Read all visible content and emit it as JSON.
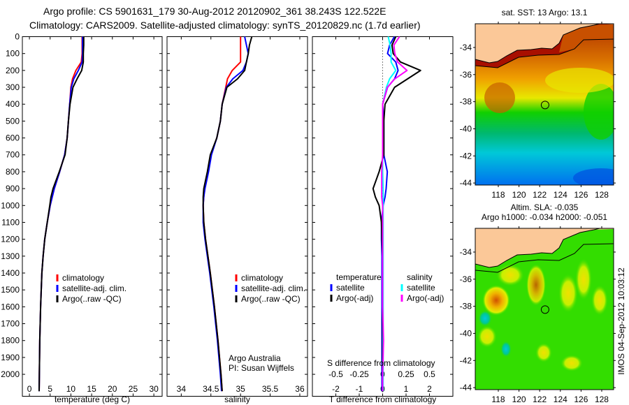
{
  "header": {
    "line1": "Argo profile: CS 5901631_179 30-Aug-2012 20120902_361 38.243S 122.522E",
    "line2": "Climatology: CARS2009. Satellite-adjusted climatology: synTS_20120829.nc (1.7d earlier)"
  },
  "credits": {
    "line1": "Argo Australia",
    "line2": "PI: Susan Wijffels"
  },
  "imos_stamp": "IMOS 04-Sep-2012 10:03:12",
  "chart_data": [
    {
      "type": "line",
      "id": "temperature",
      "xlabel": "temperature (deg C)",
      "ylabel": "depth",
      "xlim": [
        -1.7,
        32
      ],
      "ylim": [
        2130,
        0
      ],
      "xticks": [
        "0",
        "5",
        "10",
        "15",
        "20",
        "25",
        "30"
      ],
      "yticks": [
        "0",
        "100",
        "200",
        "300",
        "400",
        "500",
        "600",
        "700",
        "800",
        "900",
        "1000",
        "1100",
        "1200",
        "1300",
        "1400",
        "1500",
        "1600",
        "1700",
        "1800",
        "1900",
        "2000"
      ],
      "depth": [
        0,
        50,
        100,
        150,
        200,
        250,
        300,
        400,
        500,
        600,
        700,
        800,
        900,
        950,
        1000,
        1100,
        1200,
        1300,
        1400,
        1600,
        1800,
        2000,
        2100
      ],
      "series": [
        {
          "name": "climatology",
          "color": "#ff0000",
          "values": [
            12.7,
            12.7,
            12.7,
            12.5,
            11.2,
            10.4,
            10.0,
            9.7,
            9.4,
            9.1,
            8.5,
            7.3,
            6.0,
            5.5,
            5.0,
            4.3,
            3.7,
            3.3,
            3.0,
            2.7,
            2.5,
            2.4,
            2.35
          ]
        },
        {
          "name": "satellite-adj. clim.",
          "color": "#0000ff",
          "values": [
            12.8,
            12.8,
            12.8,
            12.7,
            11.8,
            10.7,
            10.1,
            9.7,
            9.4,
            9.1,
            8.5,
            7.3,
            6.0,
            5.5,
            5.0,
            4.3,
            3.7,
            3.3,
            3.0,
            2.7,
            2.5,
            2.4,
            2.35
          ]
        },
        {
          "name": "Argo(..raw -QC)",
          "color": "#000000",
          "values": [
            13.1,
            13.1,
            13.0,
            13.0,
            12.6,
            11.5,
            10.5,
            9.8,
            9.4,
            9.1,
            8.6,
            7.2,
            5.7,
            5.2,
            4.9,
            4.3,
            3.7,
            3.3,
            3.0,
            2.7,
            2.5,
            2.4,
            2.35
          ]
        }
      ],
      "legend": "lower-middle"
    },
    {
      "type": "line",
      "id": "salinity",
      "xlabel": "salinity",
      "xlim": [
        33.76,
        36.13
      ],
      "ylim": [
        2130,
        0
      ],
      "xticks": [
        "34",
        "34.5",
        "35",
        "35.5",
        "36"
      ],
      "depth": [
        0,
        50,
        100,
        150,
        200,
        250,
        300,
        400,
        500,
        600,
        700,
        800,
        900,
        950,
        1000,
        1100,
        1200,
        1300,
        1400,
        1600,
        1800,
        2000,
        2100
      ],
      "series": [
        {
          "name": "climatology",
          "color": "#ff0000",
          "values": [
            35.0,
            35.0,
            35.0,
            35.0,
            34.86,
            34.78,
            34.75,
            34.69,
            34.66,
            34.6,
            34.5,
            34.45,
            34.39,
            34.38,
            34.37,
            34.38,
            34.41,
            34.45,
            34.49,
            34.56,
            34.62,
            34.67,
            34.69
          ]
        },
        {
          "name": "satellite-adj. clim.",
          "color": "#0000ff",
          "values": [
            35.07,
            35.1,
            35.13,
            35.1,
            35.04,
            34.87,
            34.76,
            34.69,
            34.66,
            34.6,
            34.51,
            34.46,
            34.4,
            34.38,
            34.37,
            34.37,
            34.4,
            34.44,
            34.48,
            34.55,
            34.61,
            34.66,
            34.68
          ]
        },
        {
          "name": "Argo(..raw -QC)",
          "color": "#000000",
          "values": [
            35.19,
            35.15,
            35.13,
            35.1,
            35.07,
            34.95,
            34.77,
            34.69,
            34.66,
            34.6,
            34.49,
            34.44,
            34.38,
            34.37,
            34.37,
            34.38,
            34.41,
            34.45,
            34.49,
            34.56,
            34.62,
            34.67,
            34.69
          ]
        }
      ],
      "legend": "lower-middle"
    },
    {
      "type": "line",
      "id": "difference",
      "xlabel": "T difference from climatology",
      "x2label": "S difference from climatology",
      "xlim": [
        -3,
        3
      ],
      "x2lim": [
        -0.75,
        0.75
      ],
      "ylim": [
        2130,
        0
      ],
      "xticks": [
        "-2",
        "-1",
        "0",
        "1",
        "2"
      ],
      "x2ticks": [
        "-0.5",
        "-0.25",
        "0",
        "0.25",
        "0.5"
      ],
      "legend_headers": {
        "temperature": "temperature",
        "salinity": "salinity"
      },
      "depth": [
        0,
        50,
        100,
        150,
        200,
        250,
        300,
        400,
        500,
        600,
        700,
        800,
        900,
        950,
        1000,
        1100,
        1200,
        1300,
        1400,
        1600,
        1800,
        2000,
        2100
      ],
      "series": [
        {
          "name": "satellite",
          "group": "temperature",
          "axis": "T",
          "color": "#0000ff",
          "values": [
            0.5,
            0.3,
            0.21,
            0.56,
            0.66,
            0.51,
            0.21,
            0.0,
            0.05,
            0.05,
            0.05,
            0.2,
            0.15,
            0.1,
            0.02,
            -0.05,
            -0.05,
            -0.03,
            -0.03,
            -0.03,
            -0.03,
            -0.03,
            -0.03
          ]
        },
        {
          "name": "Argo(-adj)",
          "group": "temperature",
          "axis": "T",
          "color": "#000000",
          "values": [
            0.56,
            0.4,
            0.45,
            0.76,
            1.62,
            1.07,
            0.51,
            0.1,
            0.05,
            0.05,
            0.05,
            -0.15,
            -0.41,
            -0.31,
            -0.15,
            -0.05,
            -0.03,
            0,
            0,
            0,
            0,
            0,
            0
          ]
        },
        {
          "name": "satellite",
          "group": "salinity",
          "axis": "S",
          "color": "#00ffff",
          "values": [
            0.06,
            0.08,
            0.09,
            0.09,
            0.14,
            0.075,
            0.04,
            0,
            0,
            0,
            0,
            0,
            0.005,
            0.005,
            0.005,
            0.005,
            0.005,
            0.005,
            0.005,
            0.005,
            0.005,
            0.005,
            0.005
          ]
        },
        {
          "name": "Argo(-adj)",
          "group": "salinity",
          "axis": "S",
          "color": "#ff00ff",
          "values": [
            0.18,
            0.12,
            0.13,
            0.16,
            0.26,
            0.13,
            0.05,
            0,
            0,
            0,
            0,
            -0.01,
            -0.01,
            -0.01,
            0,
            0,
            0,
            0,
            0,
            0,
            0.01,
            0,
            0
          ]
        }
      ]
    },
    {
      "type": "heatmap",
      "id": "sst-map",
      "title": "sat. SST: 13 Argo: 13.1",
      "xlim": [
        115.77,
        129.15
      ],
      "ylim": [
        -44.15,
        -32.25
      ],
      "xticks": [
        "118",
        "120",
        "122",
        "124",
        "126",
        "128"
      ],
      "yticks": [
        "-34",
        "-36",
        "-38",
        "-40",
        "-42",
        "-44"
      ],
      "argo_position": {
        "lon": 122.522,
        "lat": -38.243
      }
    },
    {
      "type": "heatmap",
      "id": "sla-map",
      "title": "Altim. SLA: -0.035",
      "subtitle": "Argo h1000: -0.034 h2000: -0.051",
      "xlim": [
        115.77,
        129.15
      ],
      "ylim": [
        -44.15,
        -32.25
      ],
      "xticks": [
        "118",
        "120",
        "122",
        "124",
        "126",
        "128"
      ],
      "yticks": [
        "-34",
        "-36",
        "-38",
        "-40",
        "-42",
        "-44"
      ],
      "argo_position": {
        "lon": 122.522,
        "lat": -38.243
      }
    }
  ],
  "colors": {
    "land": "#fbc898",
    "sla_base": "#33dd00"
  }
}
